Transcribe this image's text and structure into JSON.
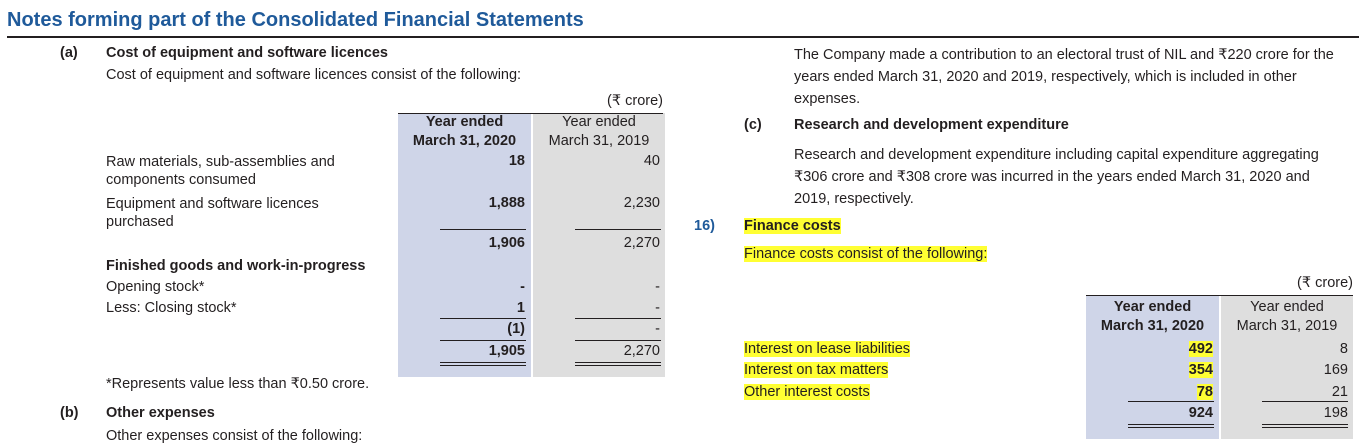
{
  "title": "Notes forming part of the Consolidated Financial Statements",
  "section_a": {
    "marker": "(a)",
    "heading": "Cost of equipment and software licences",
    "intro": "Cost of equipment and software licences consist of the following:",
    "unit": "(₹ crore)",
    "col1_header": [
      "Year ended",
      "March 31, 2020"
    ],
    "col2_header": [
      "Year ended",
      "March 31, 2019"
    ],
    "rows": [
      {
        "label": "Raw materials, sub-assemblies and components consumed",
        "v2020": "18",
        "v2019": "40"
      },
      {
        "label": "Equipment and software licences purchased",
        "v2020": "1,888",
        "v2019": "2,230"
      }
    ],
    "subtotal": {
      "v2020": "1,906",
      "v2019": "2,270"
    },
    "fg_heading": "Finished goods and work-in-progress",
    "fg_rows": [
      {
        "label": "Opening stock*",
        "v2020": "-",
        "v2019": "-"
      },
      {
        "label": "Less: Closing stock*",
        "v2020": "1",
        "v2019": "-"
      }
    ],
    "fg_net": {
      "v2020": "(1)",
      "v2019": "-"
    },
    "total": {
      "v2020": "1,905",
      "v2019": "2,270"
    },
    "footnote": "*Represents value less than ₹0.50 crore."
  },
  "section_b": {
    "marker": "(b)",
    "heading": "Other expenses",
    "intro": "Other expenses consist of the following:",
    "electoral_text": "The Company made a contribution to an electoral trust of NIL and ₹220 crore for the years ended March 31, 2020 and 2019, respectively, which is included in other expenses."
  },
  "section_c": {
    "marker": "(c)",
    "heading": "Research and development expenditure",
    "text": "Research and development expenditure including capital expenditure aggregating ₹306 crore and ₹308 crore was incurred in the years ended March 31, 2020 and 2019, respectively."
  },
  "section_16": {
    "number": "16)",
    "heading": "Finance costs",
    "intro": "Finance costs consist of the following:",
    "unit": "(₹ crore)",
    "col1_header": [
      "Year ended",
      "March 31, 2020"
    ],
    "col2_header": [
      "Year ended",
      "March 31, 2019"
    ],
    "rows": [
      {
        "label": "Interest on lease liabilities",
        "v2020": "492",
        "v2019": "8"
      },
      {
        "label": "Interest on tax matters",
        "v2020": "354",
        "v2019": "169"
      },
      {
        "label": "Other interest costs",
        "v2020": "78",
        "v2019": "21"
      }
    ],
    "total": {
      "v2020": "924",
      "v2019": "198"
    }
  }
}
